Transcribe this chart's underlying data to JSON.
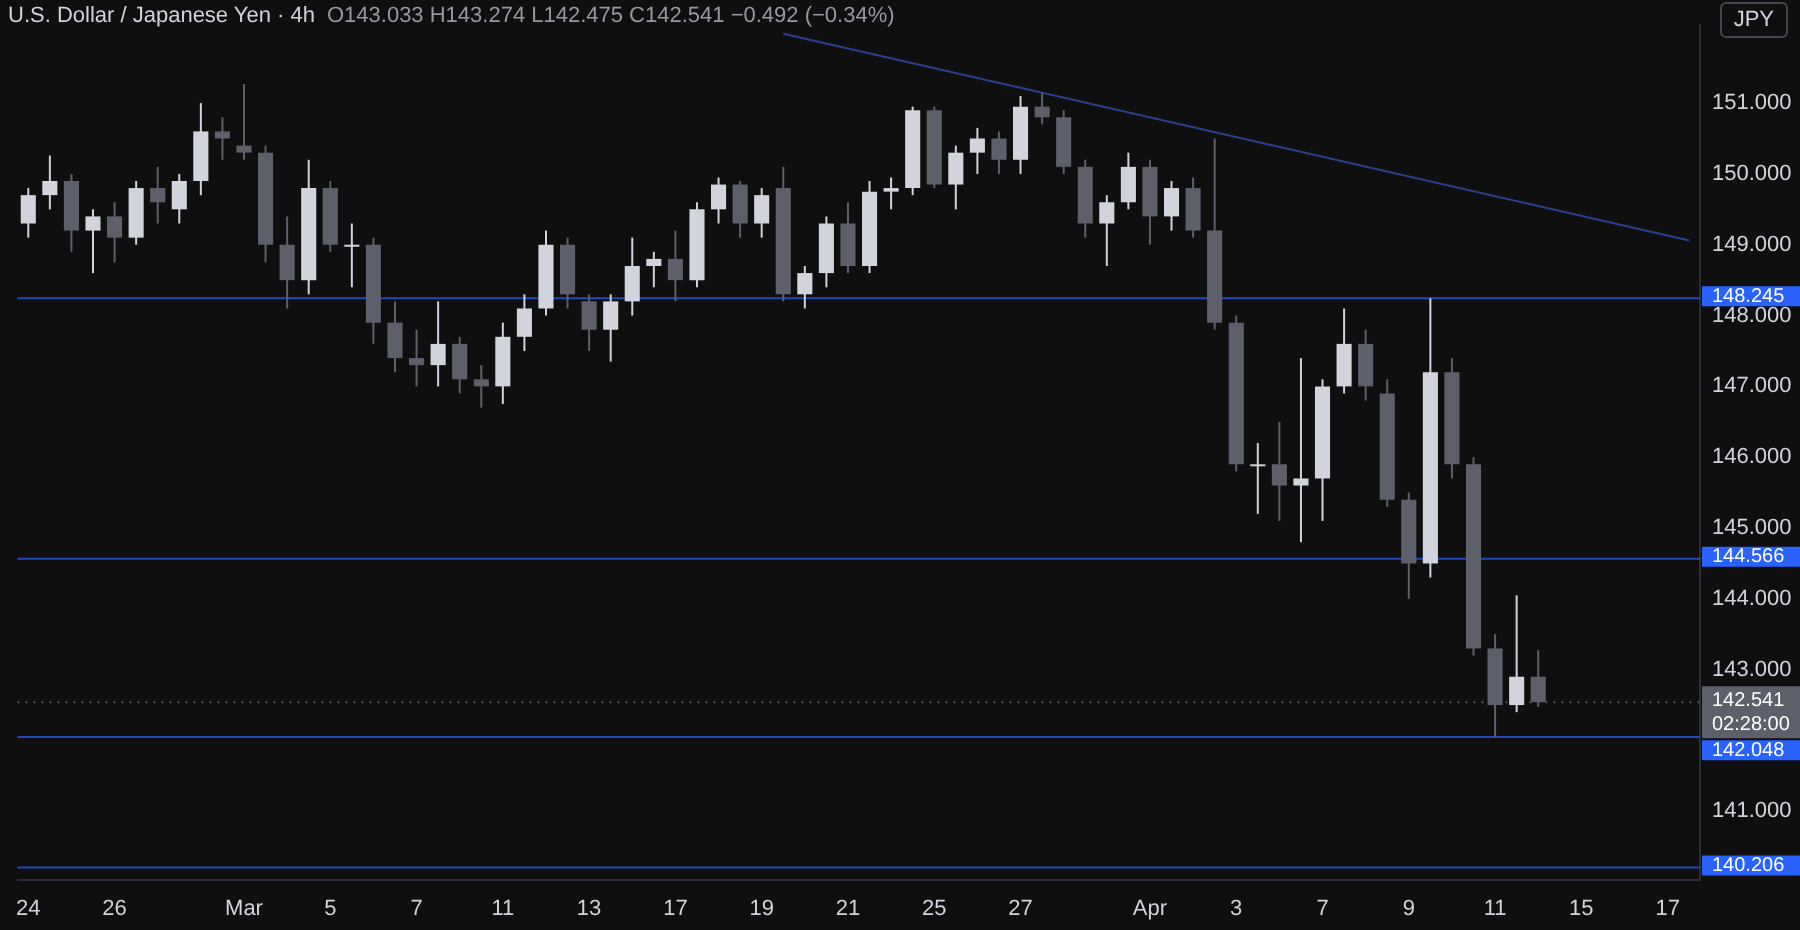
{
  "chart_data": {
    "type": "candlestick",
    "title": "U.S. Dollar / Japanese Yen · 4h",
    "subtitle": "O143.033 H143.274 L142.475 C142.541 −0.492 (−0.34%)",
    "categories": [
      "24",
      null,
      null,
      null,
      "26",
      null,
      null,
      null,
      null,
      null,
      "Mar",
      null,
      null,
      null,
      "5",
      null,
      null,
      null,
      "7",
      null,
      null,
      null,
      "11",
      null,
      null,
      null,
      "13",
      null,
      null,
      null,
      "17",
      null,
      null,
      null,
      "19",
      null,
      null,
      null,
      "21",
      null,
      null,
      null,
      "25",
      null,
      null,
      null,
      "27",
      null,
      null,
      null,
      null,
      null,
      "Apr",
      null,
      null,
      null,
      "3",
      null,
      null,
      null,
      "7",
      null,
      null,
      null,
      "9",
      null,
      null,
      null,
      "11",
      null,
      null,
      null,
      "15",
      null,
      null,
      null,
      "17",
      null
    ],
    "ohlc": [
      [
        149.3,
        149.8,
        149.1,
        149.7
      ],
      [
        149.7,
        150.26,
        149.5,
        149.9
      ],
      [
        149.9,
        150.0,
        148.9,
        149.2
      ],
      [
        149.2,
        149.5,
        148.6,
        149.4
      ],
      [
        149.4,
        149.6,
        148.75,
        149.1
      ],
      [
        149.1,
        149.9,
        149.0,
        149.8
      ],
      [
        149.8,
        150.1,
        149.3,
        149.6
      ],
      [
        149.5,
        150.0,
        149.3,
        149.9
      ],
      [
        149.9,
        151.0,
        149.7,
        150.6
      ],
      [
        150.6,
        150.8,
        150.2,
        150.5
      ],
      [
        150.4,
        151.27,
        150.2,
        150.3
      ],
      [
        150.3,
        150.4,
        148.75,
        149.0
      ],
      [
        149.0,
        149.4,
        148.1,
        148.5
      ],
      [
        148.5,
        150.2,
        148.3,
        149.8
      ],
      [
        149.8,
        149.9,
        148.9,
        149.0
      ],
      [
        149.0,
        149.3,
        148.4,
        149.0
      ],
      [
        149.0,
        149.1,
        147.6,
        147.9
      ],
      [
        147.9,
        148.2,
        147.2,
        147.4
      ],
      [
        147.4,
        147.8,
        147.0,
        147.3
      ],
      [
        147.3,
        148.2,
        147.0,
        147.6
      ],
      [
        147.6,
        147.7,
        146.9,
        147.1
      ],
      [
        147.1,
        147.3,
        146.7,
        147.0
      ],
      [
        147.0,
        147.9,
        146.75,
        147.7
      ],
      [
        147.7,
        148.3,
        147.5,
        148.1
      ],
      [
        148.1,
        149.2,
        148.0,
        149.0
      ],
      [
        149.0,
        149.1,
        148.1,
        148.3
      ],
      [
        148.2,
        148.3,
        147.5,
        147.8
      ],
      [
        147.8,
        148.3,
        147.35,
        148.2
      ],
      [
        148.2,
        149.1,
        148.0,
        148.7
      ],
      [
        148.7,
        148.9,
        148.4,
        148.8
      ],
      [
        148.8,
        149.2,
        148.2,
        148.5
      ],
      [
        148.5,
        149.6,
        148.4,
        149.5
      ],
      [
        149.5,
        149.95,
        149.3,
        149.85
      ],
      [
        149.85,
        149.9,
        149.1,
        149.3
      ],
      [
        149.3,
        149.8,
        149.1,
        149.7
      ],
      [
        149.8,
        150.1,
        148.2,
        148.3
      ],
      [
        148.3,
        148.7,
        148.1,
        148.6
      ],
      [
        148.6,
        149.4,
        148.4,
        149.3
      ],
      [
        149.3,
        149.6,
        148.6,
        148.7
      ],
      [
        148.7,
        149.9,
        148.6,
        149.75
      ],
      [
        149.75,
        149.95,
        149.5,
        149.8
      ],
      [
        149.8,
        150.95,
        149.7,
        150.9
      ],
      [
        150.9,
        150.95,
        149.8,
        149.85
      ],
      [
        149.85,
        150.4,
        149.5,
        150.3
      ],
      [
        150.3,
        150.65,
        150.0,
        150.5
      ],
      [
        150.5,
        150.6,
        150.0,
        150.2
      ],
      [
        150.2,
        151.1,
        150.0,
        150.95
      ],
      [
        150.95,
        151.15,
        150.7,
        150.8
      ],
      [
        150.8,
        150.9,
        150.0,
        150.1
      ],
      [
        150.1,
        150.2,
        149.1,
        149.3
      ],
      [
        149.3,
        149.7,
        148.7,
        149.6
      ],
      [
        149.6,
        150.3,
        149.5,
        150.1
      ],
      [
        150.1,
        150.2,
        149.0,
        149.4
      ],
      [
        149.4,
        149.9,
        149.2,
        149.8
      ],
      [
        149.8,
        149.95,
        149.1,
        149.2
      ],
      [
        149.2,
        150.5,
        147.8,
        147.9
      ],
      [
        147.9,
        148.0,
        145.8,
        145.9
      ],
      [
        145.9,
        146.2,
        145.2,
        145.9
      ],
      [
        145.9,
        146.5,
        145.1,
        145.6
      ],
      [
        145.6,
        147.4,
        144.8,
        145.7
      ],
      [
        145.7,
        147.1,
        145.1,
        147.0
      ],
      [
        147.0,
        148.1,
        146.9,
        147.6
      ],
      [
        147.6,
        147.8,
        146.8,
        147.0
      ],
      [
        146.9,
        147.1,
        145.3,
        145.4
      ],
      [
        145.4,
        145.5,
        144.0,
        144.5
      ],
      [
        144.5,
        148.245,
        144.3,
        147.2
      ],
      [
        147.2,
        147.4,
        145.7,
        145.9
      ],
      [
        145.9,
        146.0,
        143.2,
        143.3
      ],
      [
        143.3,
        143.5,
        142.048,
        142.5
      ],
      [
        142.5,
        144.05,
        142.4,
        142.9
      ],
      [
        142.9,
        143.274,
        142.475,
        142.541
      ],
      null,
      null,
      null,
      null,
      null,
      null,
      null
    ],
    "colors": [
      "#d1d4dc",
      "#d1d4dc",
      "#5d606b",
      "#d1d4dc",
      "#5d606b",
      "#d1d4dc",
      "#5d606b",
      "#d1d4dc",
      "#d1d4dc",
      "#5d606b",
      "#5d606b",
      "#5d606b",
      "#5d606b",
      "#d1d4dc",
      "#5d606b",
      "#d1d4dc",
      "#5d606b",
      "#5d606b",
      "#5d606b",
      "#d1d4dc",
      "#5d606b",
      "#5d606b",
      "#d1d4dc",
      "#d1d4dc",
      "#d1d4dc",
      "#5d606b",
      "#5d606b",
      "#d1d4dc",
      "#d1d4dc",
      "#d1d4dc",
      "#5d606b",
      "#d1d4dc",
      "#d1d4dc",
      "#5d606b",
      "#d1d4dc",
      "#5d606b",
      "#d1d4dc",
      "#d1d4dc",
      "#5d606b",
      "#d1d4dc",
      "#d1d4dc",
      "#d1d4dc",
      "#5d606b",
      "#d1d4dc",
      "#d1d4dc",
      "#5d606b",
      "#d1d4dc",
      "#5d606b",
      "#5d606b",
      "#5d606b",
      "#d1d4dc",
      "#d1d4dc",
      "#5d606b",
      "#d1d4dc",
      "#5d606b",
      "#5d606b",
      "#5d606b",
      "#d1d4dc",
      "#5d606b",
      "#d1d4dc",
      "#d1d4dc",
      "#d1d4dc",
      "#5d606b",
      "#5d606b",
      "#5d606b",
      "#d1d4dc",
      "#5d606b",
      "#5d606b",
      "#5d606b",
      "#d1d4dc",
      "#5d606b",
      null,
      null,
      null,
      null,
      null,
      null,
      null
    ],
    "series": [
      {
        "type": "line",
        "color": "#2e3f8f",
        "values": [
          null,
          null,
          null,
          null,
          null,
          null,
          null,
          null,
          null,
          null,
          null,
          null,
          null,
          null,
          null,
          null,
          null,
          null,
          null,
          null,
          null,
          null,
          null,
          null,
          null,
          null,
          null,
          null,
          null,
          null,
          null,
          null,
          null,
          null,
          null,
          151.98,
          null,
          null,
          null,
          null,
          null,
          null,
          null,
          null,
          null,
          null,
          null,
          null,
          null,
          null,
          null,
          null,
          null,
          null,
          null,
          null,
          null,
          null,
          null,
          null,
          null,
          null,
          null,
          null,
          null,
          null,
          null,
          null,
          null,
          null,
          null,
          null,
          null,
          null,
          null,
          null,
          null,
          149.06
        ]
      }
    ],
    "ylim": [
      140.03,
      152.1
    ],
    "yticks": [
      {
        "value": 141,
        "label": "141.000"
      },
      {
        "value": 143,
        "label": "143.000"
      },
      {
        "value": 144,
        "label": "144.000"
      },
      {
        "value": 145,
        "label": "145.000"
      },
      {
        "value": 146,
        "label": "146.000"
      },
      {
        "value": 147,
        "label": "147.000"
      },
      {
        "value": 148,
        "label": "148.000"
      },
      {
        "value": 149,
        "label": "149.000"
      },
      {
        "value": 150,
        "label": "150.000"
      },
      {
        "value": 151,
        "label": "151.000"
      }
    ],
    "ref_lines": [
      {
        "axis": "y",
        "value": 148.245,
        "label": "148.245",
        "color": "#2962ff"
      },
      {
        "axis": "y",
        "value": 144.566,
        "label": "144.566",
        "color": "#2962ff"
      },
      {
        "axis": "y",
        "value": 142.048,
        "label": "142.048",
        "color": "#2962ff"
      },
      {
        "axis": "y",
        "value": 140.206,
        "label": "140.206",
        "color": "#2962ff"
      },
      {
        "axis": "y",
        "value": 142.541,
        "label": "142.541",
        "color": "#5d606b",
        "line_style": "dotted"
      }
    ],
    "annotations": [
      "JPY",
      "02:28:00"
    ],
    "grid": false,
    "legend": false
  }
}
